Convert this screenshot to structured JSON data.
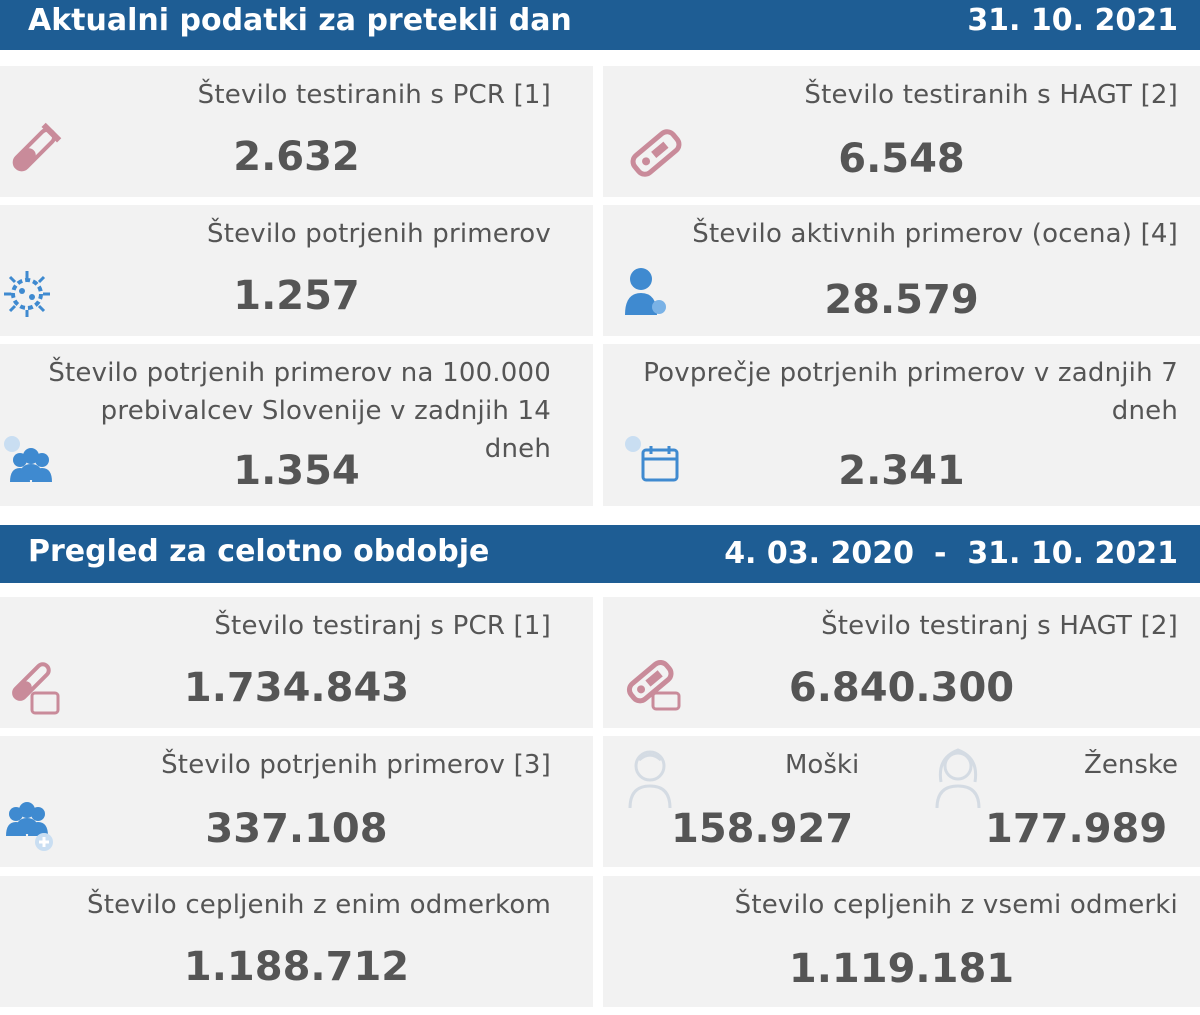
{
  "section_daily": {
    "title": "Aktualni podatki za pretekli dan",
    "date": "31. 10. 2021",
    "cards": {
      "pcr": {
        "label": "Število testiranih s PCR [1]",
        "value": "2.632",
        "icon": "test-tube-icon"
      },
      "hagt": {
        "label": "Število testiranih s HAGT [2]",
        "value": "6.548",
        "icon": "rapid-test-icon"
      },
      "confirmed": {
        "label": "Število potrjenih primerov",
        "value": "1.257",
        "icon": "virus-icon"
      },
      "active": {
        "label": "Število aktivnih primerov (ocena) [4]",
        "value": "28.579",
        "icon": "person-icon"
      },
      "per100k": {
        "label": "Število potrjenih primerov na 100.000 prebivalcev Slovenije v zadnjih 14 dneh",
        "value": "1.354",
        "icon": "group-icon"
      },
      "avg7": {
        "label": "Povprečje potrjenih primerov v zadnjih 7 dneh",
        "value": "2.341",
        "icon": "calendar-icon"
      }
    }
  },
  "section_total": {
    "title": "Pregled za celotno obdobje",
    "date_start": "4. 03. 2020",
    "separator": "-",
    "date_end": "31. 10. 2021",
    "cards": {
      "pcr": {
        "label": "Število testiranj s PCR [1]",
        "value": "1.734.843",
        "icon": "test-tube-box-icon"
      },
      "hagt": {
        "label": "Število testiranj s HAGT [2]",
        "value": "6.840.300",
        "icon": "rapid-test-box-icon"
      },
      "confirmed": {
        "label": "Število potrjenih primerov [3]",
        "value": "337.108",
        "icon": "group-plus-icon"
      },
      "gender": {
        "male_label": "Moški",
        "male_value": "158.927",
        "male_icon": "male-icon",
        "female_label": "Ženske",
        "female_value": "177.989",
        "female_icon": "female-icon"
      },
      "vacc_one": {
        "label": "Število cepljenih z enim odmerkom",
        "value": "1.188.712"
      },
      "vacc_all": {
        "label": "Število cepljenih z vsemi odmerki",
        "value": "1.119.181"
      }
    }
  },
  "colors": {
    "header": "#1e5d94",
    "card": "#f2f2f2",
    "text": "#555555",
    "pink_icon": "#c98b9a",
    "blue_icon": "#3f8ad0"
  }
}
